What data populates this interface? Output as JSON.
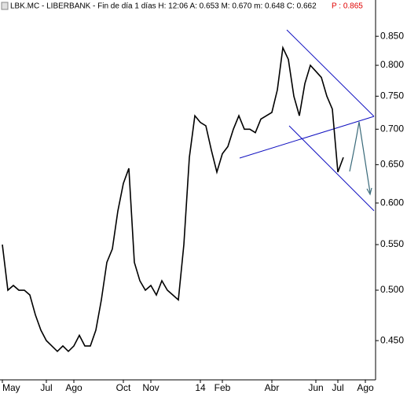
{
  "chart_data": {
    "type": "line",
    "title": "LBK.MC - LIBERBANK - Fin de día 1 días  H: 12:06  A: 0.653  M: 0.670  m: 0.648  C: 0.662",
    "price_label": "P : 0.865",
    "categories": [
      "May",
      null,
      null,
      null,
      null,
      null,
      null,
      null,
      "Jul",
      null,
      null,
      null,
      null,
      "Ago",
      null,
      null,
      null,
      null,
      null,
      null,
      null,
      null,
      "Oct",
      null,
      null,
      null,
      null,
      "Nov",
      null,
      null,
      null,
      null,
      null,
      null,
      null,
      null,
      "14",
      null,
      null,
      null,
      "Feb",
      null,
      null,
      null,
      null,
      null,
      null,
      null,
      null,
      "Abr",
      null,
      null,
      null,
      null,
      null,
      null,
      null,
      "Jun",
      null,
      null,
      null,
      "Jul",
      null,
      null,
      null,
      null,
      "Ago"
    ],
    "series": [
      {
        "name": "LBK.MC",
        "color": "#000000",
        "values": [
          0.55,
          0.5,
          0.505,
          0.5,
          0.5,
          0.495,
          0.475,
          0.46,
          0.45,
          0.445,
          0.44,
          0.445,
          0.44,
          0.445,
          0.455,
          0.445,
          0.445,
          0.46,
          0.49,
          0.53,
          0.545,
          0.59,
          0.625,
          0.645,
          0.53,
          0.51,
          0.5,
          0.505,
          0.495,
          0.51,
          0.5,
          0.495,
          0.49,
          0.55,
          0.66,
          0.72,
          0.71,
          0.705,
          0.67,
          0.64,
          0.665,
          0.675,
          0.7,
          0.72,
          0.7,
          0.7,
          0.695,
          0.715,
          0.72,
          0.725,
          0.76,
          0.83,
          0.81,
          0.75,
          0.72,
          0.77,
          0.8,
          0.79,
          0.78,
          0.75,
          0.73,
          0.64,
          0.66,
          null,
          null,
          null,
          null
        ]
      }
    ],
    "ylim": [
      0.418,
      0.917
    ],
    "yscale": "log",
    "yticks": [
      {
        "value": 0.45,
        "label": "0.450"
      },
      {
        "value": 0.5,
        "label": "0.500"
      },
      {
        "value": 0.55,
        "label": "0.550"
      },
      {
        "value": 0.6,
        "label": "0.600"
      },
      {
        "value": 0.65,
        "label": "0.650"
      },
      {
        "value": 0.7,
        "label": "0.700"
      },
      {
        "value": 0.75,
        "label": "0.750"
      },
      {
        "value": 0.8,
        "label": "0.800"
      },
      {
        "value": 0.85,
        "label": "0.850"
      }
    ],
    "grid": false
  }
}
